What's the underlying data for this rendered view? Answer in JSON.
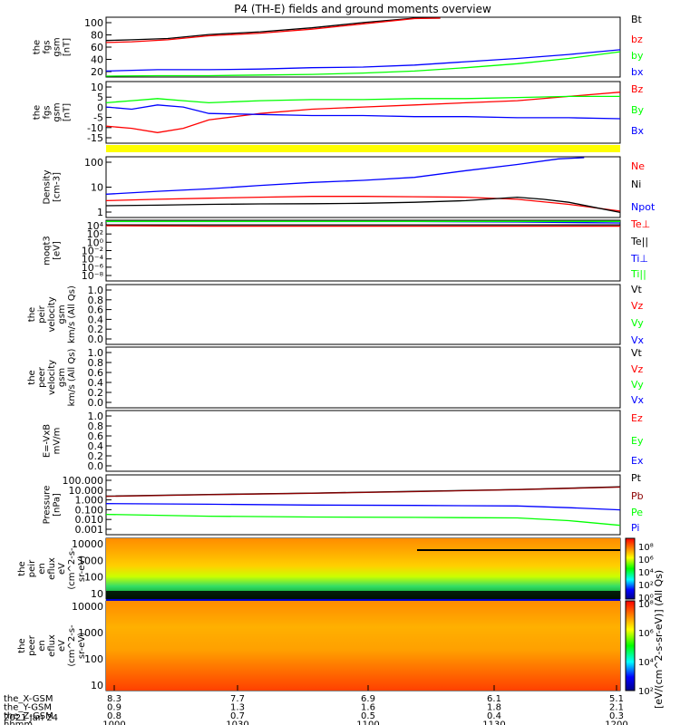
{
  "title": "P4 (TH-E) fields and ground moments overview",
  "colors": {
    "black": "#000000",
    "red": "#ff0000",
    "green": "#00ff00",
    "blue": "#0000ff",
    "yellow": "#ffff00",
    "darkred": "#8b0000"
  },
  "colorbar": {
    "label": "[eV/(cm^2-s-sr-eV)] (All Qs)",
    "top_ticks": [
      "10⁸",
      "10⁶",
      "10⁴",
      "10²",
      "10⁰"
    ],
    "bottom_ticks": [
      "10⁸",
      "10⁶",
      "10⁴",
      "10²"
    ]
  },
  "x_axis": {
    "rows": [
      {
        "label": "the_X-GSM",
        "values": [
          "8.3",
          "7.7",
          "6.9",
          "6.1",
          "5.1"
        ]
      },
      {
        "label": "the_Y-GSM",
        "values": [
          "0.9",
          "1.3",
          "1.6",
          "1.8",
          "2.1"
        ]
      },
      {
        "label": "the_Z-GSM",
        "values": [
          "0.8",
          "0.7",
          "0.5",
          "0.4",
          "0.3"
        ]
      },
      {
        "label": "hhmm",
        "values": [
          "1000",
          "1030",
          "1100",
          "1130",
          "1200"
        ]
      }
    ],
    "date": "2021 Jan 24"
  },
  "chart_data": [
    {
      "type": "line",
      "ylabel": [
        "the",
        "fgs",
        "gsm",
        "[nT]"
      ],
      "ylim": [
        10,
        100
      ],
      "yticks": [
        "100",
        "80",
        "60",
        "40",
        "20"
      ],
      "legend": [
        {
          "label": "Bt",
          "color": "#000000"
        },
        {
          "label": "bz",
          "color": "#ff0000"
        },
        {
          "label": "by",
          "color": "#00ff00"
        },
        {
          "label": "bx",
          "color": "#0000ff"
        }
      ],
      "series": [
        {
          "color": "#000000",
          "x": [
            0,
            0.05,
            0.12,
            0.2,
            0.3,
            0.4,
            0.5,
            0.6,
            0.65
          ],
          "y": [
            65,
            66,
            68,
            74,
            78,
            84,
            92,
            100,
            104
          ]
        },
        {
          "color": "#ff0000",
          "x": [
            0,
            0.05,
            0.12,
            0.2,
            0.3,
            0.4,
            0.5,
            0.6,
            0.65
          ],
          "y": [
            62,
            63,
            66,
            72,
            76,
            82,
            90,
            98,
            102
          ]
        },
        {
          "color": "#00ff00",
          "x": [
            0,
            0.1,
            0.2,
            0.3,
            0.4,
            0.5,
            0.6,
            0.7,
            0.8,
            0.9,
            1.0
          ],
          "y": [
            11,
            12,
            12,
            13,
            14,
            16,
            19,
            24,
            30,
            38,
            48
          ]
        },
        {
          "color": "#0000ff",
          "x": [
            0,
            0.1,
            0.2,
            0.3,
            0.4,
            0.5,
            0.6,
            0.7,
            0.8,
            0.9,
            1.0
          ],
          "y": [
            19,
            21,
            21,
            22,
            24,
            25,
            28,
            33,
            38,
            44,
            51
          ]
        }
      ]
    },
    {
      "type": "line",
      "ylabel": [
        "the",
        "fgs",
        "gsm",
        "[nT]"
      ],
      "ylim": [
        -19,
        10
      ],
      "yticks": [
        "10",
        "5",
        "0",
        "-5",
        "-10",
        "-15"
      ],
      "legend": [
        {
          "label": "Bz",
          "color": "#ff0000"
        },
        {
          "label": "By",
          "color": "#00ff00"
        },
        {
          "label": "Bx",
          "color": "#0000ff"
        }
      ],
      "series": [
        {
          "color": "#ff0000",
          "x": [
            0,
            0.05,
            0.1,
            0.15,
            0.2,
            0.3,
            0.4,
            0.5,
            0.6,
            0.7,
            0.8,
            0.9,
            1.0
          ],
          "y": [
            -11,
            -12,
            -14,
            -12,
            -8,
            -5,
            -3,
            -2,
            -1,
            0,
            1,
            3,
            5
          ]
        },
        {
          "color": "#00ff00",
          "x": [
            0,
            0.05,
            0.1,
            0.15,
            0.2,
            0.3,
            0.4,
            0.5,
            0.6,
            0.7,
            0.8,
            0.9,
            1.0
          ],
          "y": [
            0,
            1,
            2,
            1,
            0,
            1,
            1.5,
            1.5,
            2,
            2,
            2.5,
            3,
            3
          ]
        },
        {
          "color": "#0000ff",
          "x": [
            0,
            0.05,
            0.1,
            0.15,
            0.2,
            0.3,
            0.4,
            0.5,
            0.6,
            0.7,
            0.8,
            0.9,
            1.0
          ],
          "y": [
            -2,
            -3,
            -1,
            -2,
            -5,
            -5.5,
            -6,
            -6,
            -6.5,
            -6.5,
            -7,
            -7,
            -7.5
          ]
        }
      ]
    },
    {
      "type": "bar",
      "note": "yellow state bar",
      "color": "#ffff00"
    },
    {
      "type": "line",
      "ylabel": [
        "Density",
        "[cm-3]"
      ],
      "ylim": [
        0.05,
        200
      ],
      "scale": "log",
      "yticks": [
        "100",
        "10",
        "1"
      ],
      "legend": [
        {
          "label": "Ne",
          "color": "#ff0000"
        },
        {
          "label": "Ni",
          "color": "#000000"
        },
        {
          "label": "Npot",
          "color": "#0000ff"
        }
      ],
      "series": [
        {
          "color": "#0000ff",
          "x": [
            0,
            0.1,
            0.2,
            0.3,
            0.4,
            0.5,
            0.6,
            0.7,
            0.8,
            0.88,
            0.93
          ],
          "y": [
            1.2,
            1.8,
            2.5,
            4,
            6,
            8,
            12,
            30,
            70,
            150,
            200
          ]
        },
        {
          "color": "#ff0000",
          "x": [
            0,
            0.1,
            0.2,
            0.3,
            0.4,
            0.5,
            0.6,
            0.7,
            0.8,
            0.9,
            1.0
          ],
          "y": [
            0.5,
            0.6,
            0.7,
            0.8,
            0.9,
            0.9,
            0.85,
            0.8,
            0.6,
            0.3,
            0.12
          ]
        },
        {
          "color": "#000000",
          "x": [
            0,
            0.1,
            0.2,
            0.3,
            0.4,
            0.5,
            0.6,
            0.7,
            0.8,
            0.85,
            0.9,
            0.95,
            1.0
          ],
          "y": [
            0.25,
            0.27,
            0.3,
            0.32,
            0.33,
            0.35,
            0.4,
            0.5,
            0.8,
            0.6,
            0.4,
            0.2,
            0.1
          ]
        }
      ]
    },
    {
      "type": "line",
      "ylabel": [
        "moqt3",
        "[eV]"
      ],
      "scale": "log",
      "yticks": [
        "10⁴",
        "10²",
        "10⁰",
        "10⁻²",
        "10⁻⁴",
        "10⁻⁶",
        "10⁻⁸"
      ],
      "legend": [
        {
          "label": "Te⊥",
          "color": "#ff0000"
        },
        {
          "label": "Te||",
          "color": "#000000"
        },
        {
          "label": "Ti⊥",
          "color": "#0000ff"
        },
        {
          "label": "Ti||",
          "color": "#00ff00"
        }
      ],
      "series": [
        {
          "color": "#0000ff",
          "x": [
            0,
            0.2,
            0.4,
            0.6,
            0.8,
            1.0
          ],
          "y": [
            3.9,
            3.9,
            3.9,
            3.9,
            3.8,
            3.6
          ]
        },
        {
          "color": "#00ff00",
          "x": [
            0,
            0.2,
            0.4,
            0.6,
            0.8,
            1.0
          ],
          "y": [
            3.95,
            3.95,
            3.95,
            3.95,
            3.95,
            3.95
          ]
        },
        {
          "color": "#000000",
          "x": [
            0,
            0.2,
            0.4,
            0.6,
            0.8,
            1.0
          ],
          "y": [
            3.2,
            3.2,
            3.2,
            3.2,
            3.2,
            3.2
          ]
        },
        {
          "color": "#ff0000",
          "x": [
            0,
            0.2,
            0.4,
            0.6,
            0.8,
            1.0
          ],
          "y": [
            3.0,
            2.9,
            2.9,
            2.9,
            2.9,
            2.9
          ]
        }
      ]
    },
    {
      "type": "line",
      "ylabel": [
        "the",
        "peir",
        "velocity",
        "gsm",
        "km/s (All Qs)"
      ],
      "ylim": [
        0,
        1
      ],
      "yticks": [
        "1.0",
        "0.8",
        "0.6",
        "0.4",
        "0.2",
        "0.0"
      ],
      "legend": [
        {
          "label": "Vt",
          "color": "#000000"
        },
        {
          "label": "Vz",
          "color": "#ff0000"
        },
        {
          "label": "Vy",
          "color": "#00ff00"
        },
        {
          "label": "Vx",
          "color": "#0000ff"
        }
      ],
      "series": []
    },
    {
      "type": "line",
      "ylabel": [
        "the",
        "peer",
        "velocity",
        "gsm",
        "km/s (All Qs)"
      ],
      "ylim": [
        0,
        1
      ],
      "yticks": [
        "1.0",
        "0.8",
        "0.6",
        "0.4",
        "0.2",
        "0.0"
      ],
      "legend": [
        {
          "label": "Vt",
          "color": "#000000"
        },
        {
          "label": "Vz",
          "color": "#ff0000"
        },
        {
          "label": "Vy",
          "color": "#00ff00"
        },
        {
          "label": "Vx",
          "color": "#0000ff"
        }
      ],
      "series": []
    },
    {
      "type": "line",
      "ylabel": [
        "E=-VxB",
        "mV/m"
      ],
      "ylim": [
        0,
        1
      ],
      "yticks": [
        "1.0",
        "0.8",
        "0.6",
        "0.4",
        "0.2",
        "0.0"
      ],
      "legend": [
        {
          "label": "Ez",
          "color": "#ff0000"
        },
        {
          "label": "Ey",
          "color": "#00ff00"
        },
        {
          "label": "Ex",
          "color": "#0000ff"
        }
      ],
      "series": []
    },
    {
      "type": "line",
      "ylabel": [
        "Pressure",
        "[nPa]"
      ],
      "scale": "log",
      "yticks": [
        "100.000",
        "10.000",
        "1.000",
        "0.100",
        "0.010",
        "0.001"
      ],
      "legend": [
        {
          "label": "Pt",
          "color": "#000000"
        },
        {
          "label": "Pb",
          "color": "#8b0000"
        },
        {
          "label": "Pe",
          "color": "#00ff00"
        },
        {
          "label": "Pi",
          "color": "#0000ff"
        }
      ],
      "series": [
        {
          "color": "#000000",
          "x": [
            0,
            0.2,
            0.4,
            0.6,
            0.8,
            1.0
          ],
          "y": [
            1.7,
            2.3,
            3.0,
            4.2,
            6.0,
            10
          ]
        },
        {
          "color": "#8b0000",
          "x": [
            0,
            0.2,
            0.4,
            0.6,
            0.8,
            1.0
          ],
          "y": [
            1.6,
            2.2,
            2.9,
            4.0,
            5.8,
            9.5
          ]
        },
        {
          "color": "#0000ff",
          "x": [
            0,
            0.2,
            0.4,
            0.6,
            0.8,
            0.9,
            1.0
          ],
          "y": [
            0.4,
            0.35,
            0.3,
            0.28,
            0.25,
            0.18,
            0.12
          ]
        },
        {
          "color": "#00ff00",
          "x": [
            0,
            0.2,
            0.4,
            0.6,
            0.8,
            0.9,
            1.0
          ],
          "y": [
            0.05,
            0.035,
            0.03,
            0.028,
            0.025,
            0.015,
            0.006
          ]
        }
      ]
    },
    {
      "type": "heatmap",
      "ylabel": [
        "the",
        "peir",
        "en",
        "eflux",
        "eV",
        "(cm^2-s-",
        "sr-eV)"
      ],
      "scale": "log",
      "yticks": [
        "10000",
        "1000",
        "100",
        "10"
      ]
    },
    {
      "type": "heatmap",
      "ylabel": [
        "the",
        "peer",
        "en",
        "eflux",
        "eV",
        "(cm^2-s-",
        "sr-eV)"
      ],
      "scale": "log",
      "yticks": [
        "10000",
        "1000",
        "100",
        "10"
      ]
    }
  ]
}
